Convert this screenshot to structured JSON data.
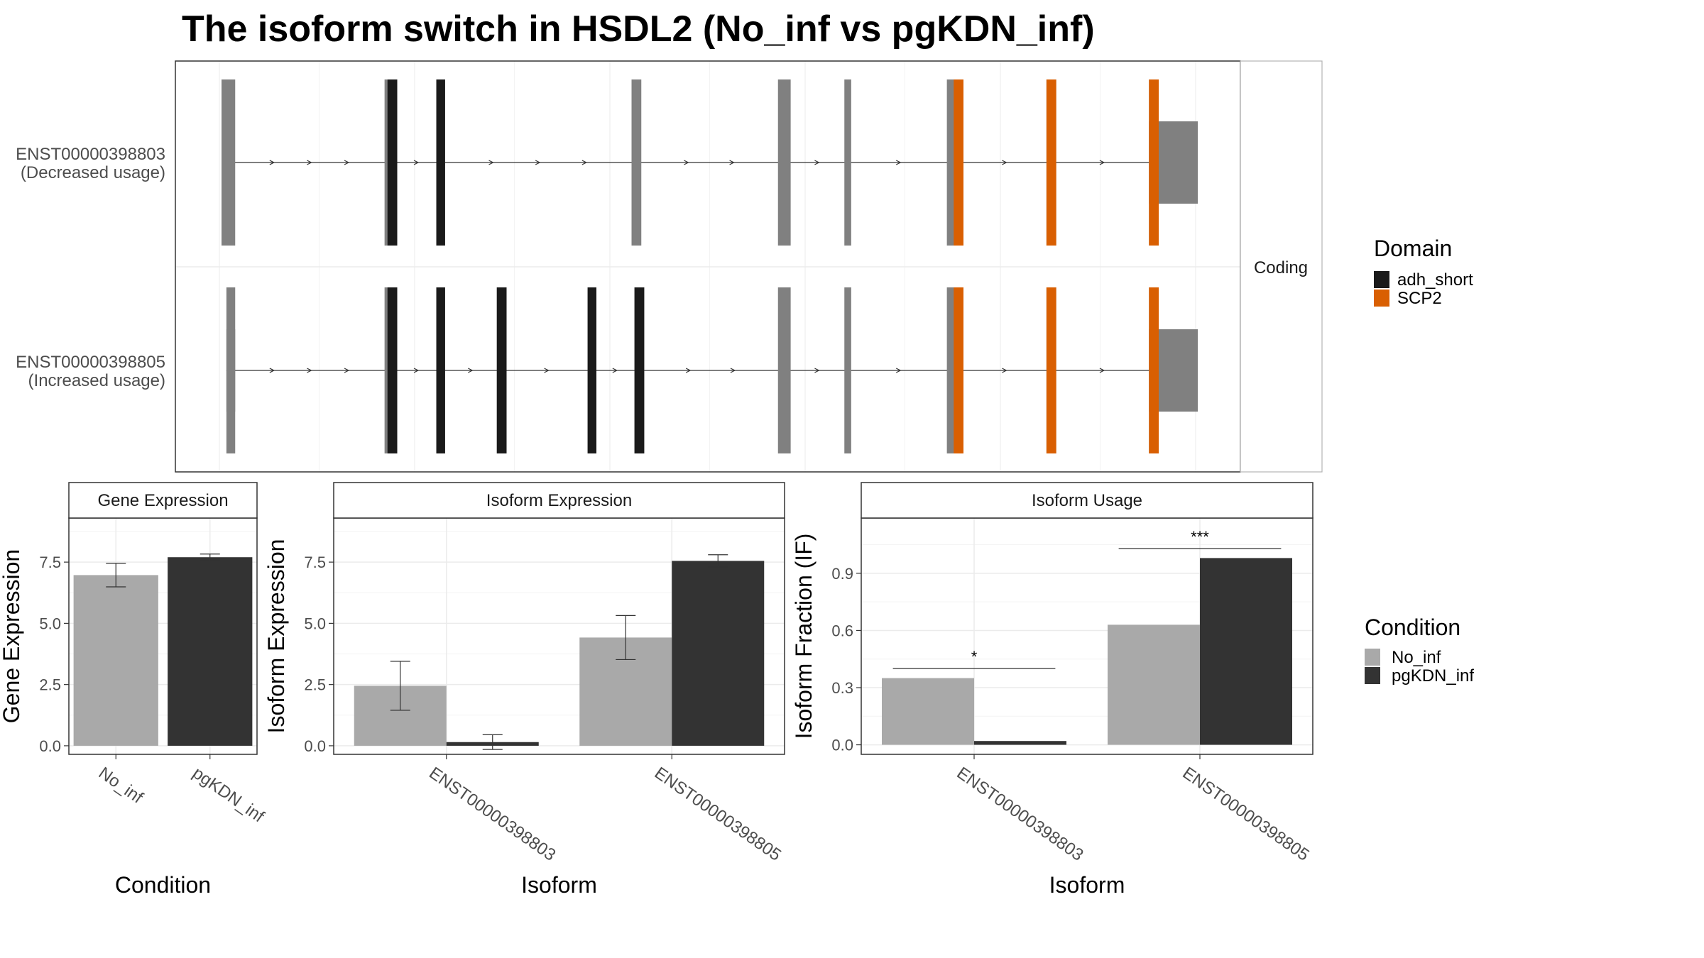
{
  "title": "The isoform switch in HSDL2 (No_inf vs pgKDN_inf)",
  "colors": {
    "utr": "#808080",
    "adh_short": "#1a1a1a",
    "SCP2": "#d95f02",
    "No_inf": "#a9a9a9",
    "pgKDN_inf": "#333333",
    "grid": "#ebebeb",
    "panel_border": "#333333",
    "strip_fill": "#ffffff"
  },
  "chart_data": [
    {
      "type": "gene-structure",
      "strip_label": "Coding",
      "genome_range": [
        0,
        10000
      ],
      "transcripts": [
        {
          "name": "ENST00000398803",
          "usage": "(Decreased usage)",
          "utr5": [
            [
              0,
              100
            ]
          ],
          "exons": [
            [
              0,
              140
            ],
            [
              1670,
              1800
            ],
            [
              2200,
              2290
            ],
            [
              4200,
              4300
            ],
            [
              5700,
              5830
            ],
            [
              6380,
              6450
            ],
            [
              7430,
              7600
            ],
            [
              8450,
              8550
            ],
            [
              9500,
              9600
            ]
          ],
          "utr3": [
            [
              9500,
              10000
            ]
          ],
          "domains": [
            {
              "name": "adh_short",
              "ranges": [
                [
                  1700,
                  1800
                ],
                [
                  2200,
                  2290
                ]
              ]
            },
            {
              "name": "SCP2",
              "ranges": [
                [
                  7500,
                  7600
                ],
                [
                  8450,
                  8550
                ],
                [
                  9500,
                  9600
                ]
              ]
            }
          ]
        },
        {
          "name": "ENST00000398805",
          "usage": "(Increased usage)",
          "utr5": [
            [
              50,
              140
            ]
          ],
          "exons": [
            [
              50,
              140
            ],
            [
              1670,
              1800
            ],
            [
              2200,
              2290
            ],
            [
              2820,
              2920
            ],
            [
              3750,
              3840
            ],
            [
              4230,
              4330
            ],
            [
              5700,
              5830
            ],
            [
              6380,
              6450
            ],
            [
              7430,
              7600
            ],
            [
              8450,
              8550
            ],
            [
              9500,
              9600
            ]
          ],
          "utr3": [
            [
              9500,
              10000
            ]
          ],
          "domains": [
            {
              "name": "adh_short",
              "ranges": [
                [
                  1700,
                  1800
                ],
                [
                  2200,
                  2290
                ],
                [
                  2820,
                  2920
                ],
                [
                  3750,
                  3840
                ],
                [
                  4230,
                  4330
                ]
              ]
            },
            {
              "name": "SCP2",
              "ranges": [
                [
                  7500,
                  7600
                ],
                [
                  8450,
                  8550
                ],
                [
                  9500,
                  9600
                ]
              ]
            }
          ]
        }
      ],
      "legend": {
        "title": "Domain",
        "entries": [
          "adh_short",
          "SCP2"
        ]
      }
    },
    {
      "type": "bar",
      "strip_label": "Gene Expression",
      "xlabel": "Condition",
      "ylabel": "Gene Expression",
      "categories": [
        "No_inf",
        "pgKDN_inf"
      ],
      "values": [
        6.97,
        7.7
      ],
      "error": [
        0.48,
        0.13
      ],
      "ylim": [
        -0.35,
        9.3
      ],
      "yticks": [
        "0.0",
        "2.5",
        "5.0",
        "7.5"
      ],
      "ytick_values": [
        0,
        2.5,
        5,
        7.5
      ]
    },
    {
      "type": "bar",
      "strip_label": "Isoform Expression",
      "xlabel": "Isoform",
      "ylabel": "Isoform Expression",
      "categories": [
        "ENST00000398803",
        "ENST00000398805"
      ],
      "series": [
        {
          "name": "No_inf",
          "values": [
            2.45,
            4.42
          ],
          "error": [
            1.0,
            0.9
          ]
        },
        {
          "name": "pgKDN_inf",
          "values": [
            0.15,
            7.55
          ],
          "error": [
            0.3,
            0.25
          ]
        }
      ],
      "ylim": [
        -0.35,
        9.3
      ],
      "yticks": [
        "0.0",
        "2.5",
        "5.0",
        "7.5"
      ],
      "ytick_values": [
        0,
        2.5,
        5,
        7.5
      ]
    },
    {
      "type": "bar",
      "strip_label": "Isoform Usage",
      "xlabel": "Isoform",
      "ylabel": "Isoform Fraction (IF)",
      "categories": [
        "ENST00000398803",
        "ENST00000398805"
      ],
      "series": [
        {
          "name": "No_inf",
          "values": [
            0.35,
            0.63
          ]
        },
        {
          "name": "pgKDN_inf",
          "values": [
            0.02,
            0.98
          ]
        }
      ],
      "significance": [
        {
          "category": "ENST00000398803",
          "label": "*",
          "y": 0.4
        },
        {
          "category": "ENST00000398805",
          "label": "***",
          "y": 1.03
        }
      ],
      "ylim": [
        -0.05,
        1.19
      ],
      "yticks": [
        "0.0",
        "0.3",
        "0.6",
        "0.9"
      ],
      "ytick_values": [
        0,
        0.3,
        0.6,
        0.9
      ]
    }
  ],
  "condition_legend": {
    "title": "Condition",
    "entries": [
      "No_inf",
      "pgKDN_inf"
    ]
  }
}
